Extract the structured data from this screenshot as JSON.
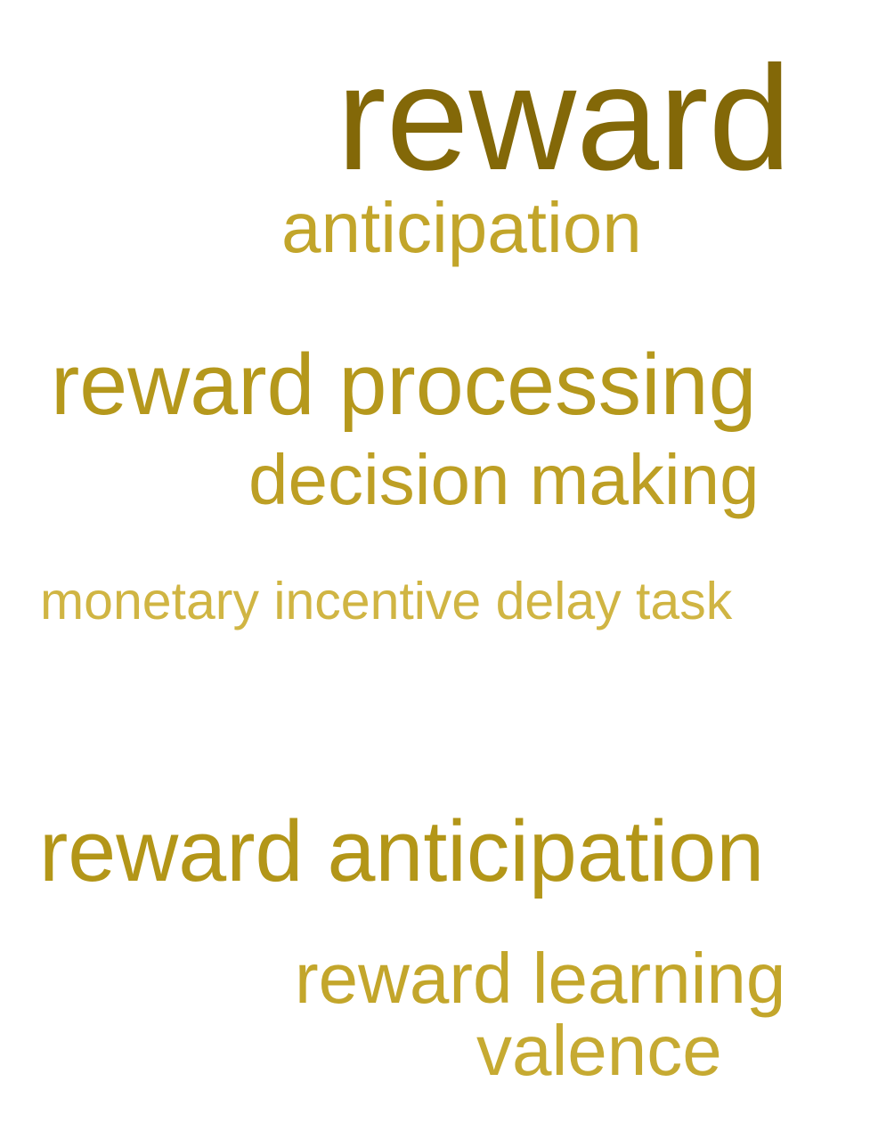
{
  "words": [
    {
      "text": "reward",
      "color": "#836808"
    },
    {
      "text": "anticipation",
      "color": "#c2a52a"
    },
    {
      "text": "reward processing",
      "color": "#b5981c"
    },
    {
      "text": "decision making",
      "color": "#bd9f24"
    },
    {
      "text": "monetary incentive delay task",
      "color": "#d0b543"
    },
    {
      "text": "reward anticipation",
      "color": "#b39618"
    },
    {
      "text": "reward learning",
      "color": "#c3a62b"
    },
    {
      "text": "valence",
      "color": "#c6aa32"
    }
  ]
}
